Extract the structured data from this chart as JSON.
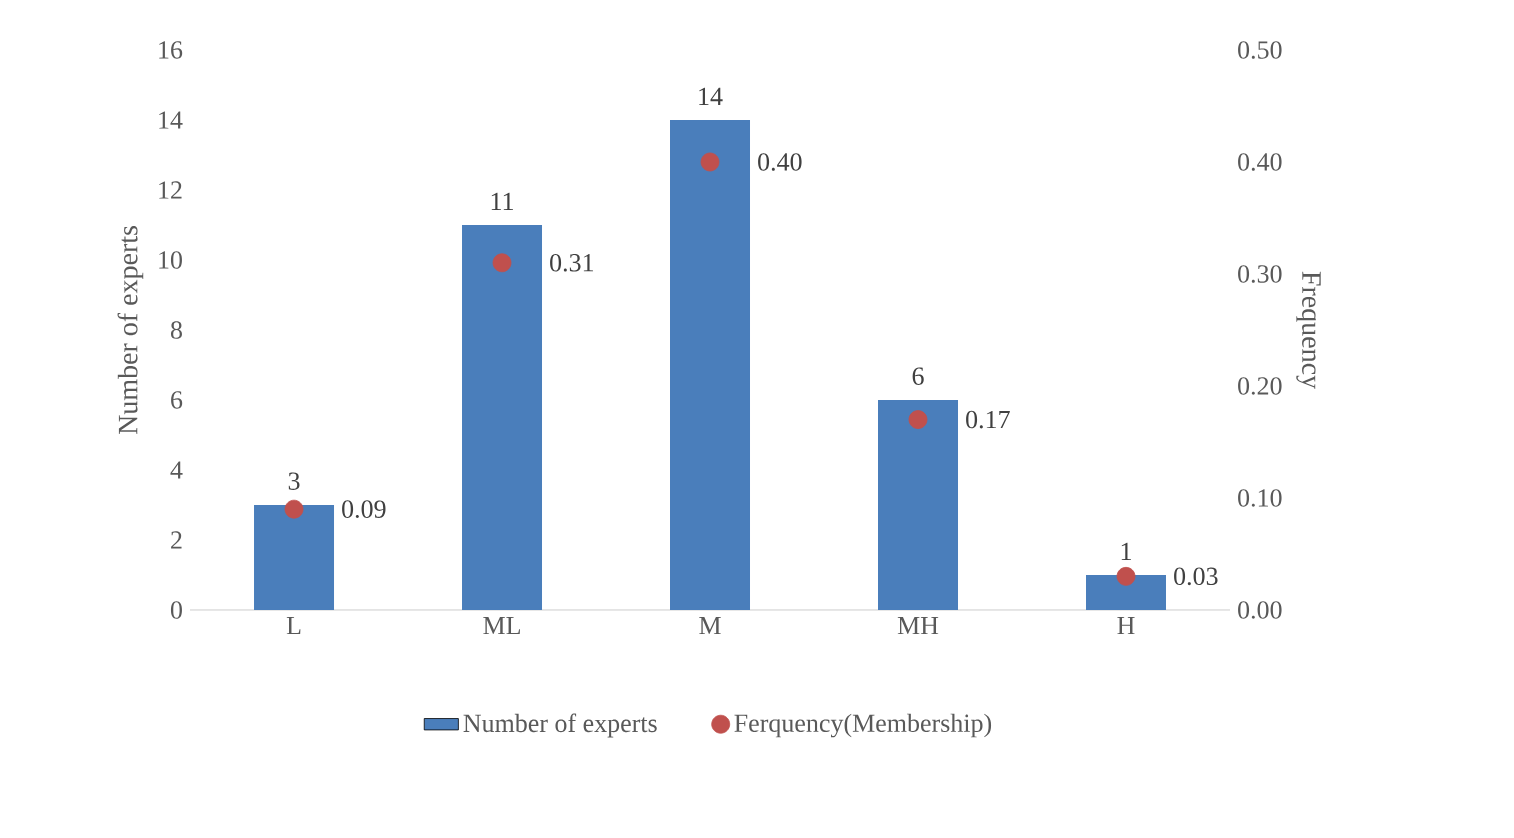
{
  "chart_data": {
    "type": "bar",
    "categories": [
      "L",
      "ML",
      "M",
      "MH",
      "H"
    ],
    "series": [
      {
        "name": "Number of experts",
        "color": "#4a7ebb",
        "values": [
          3,
          11,
          14,
          6,
          1
        ]
      },
      {
        "name": "Ferquency(Membership)",
        "type": "scatter",
        "axis": "y2",
        "color": "#c0504d",
        "marker": "circle",
        "values": [
          0.09,
          0.31,
          0.4,
          0.17,
          0.03
        ],
        "value_labels": [
          "0.09",
          "0.31",
          "0.40",
          "0.17",
          "0.03"
        ]
      }
    ],
    "ylabel": "Number of experts",
    "y2label": "Frequency",
    "ylim": [
      0,
      16
    ],
    "yticks": [
      0,
      2,
      4,
      6,
      8,
      10,
      12,
      14,
      16
    ],
    "y2lim": [
      0,
      0.5
    ],
    "y2ticks": [
      {
        "value": 0,
        "label": "0.00"
      },
      {
        "value": 0.1,
        "label": "0.10"
      },
      {
        "value": 0.2,
        "label": "0.20"
      },
      {
        "value": 0.3,
        "label": "0.30"
      },
      {
        "value": 0.4,
        "label": "0.40"
      },
      {
        "value": 0.5,
        "label": "0.50"
      }
    ],
    "data_labels": true,
    "grid": false,
    "legend": "bottom"
  }
}
